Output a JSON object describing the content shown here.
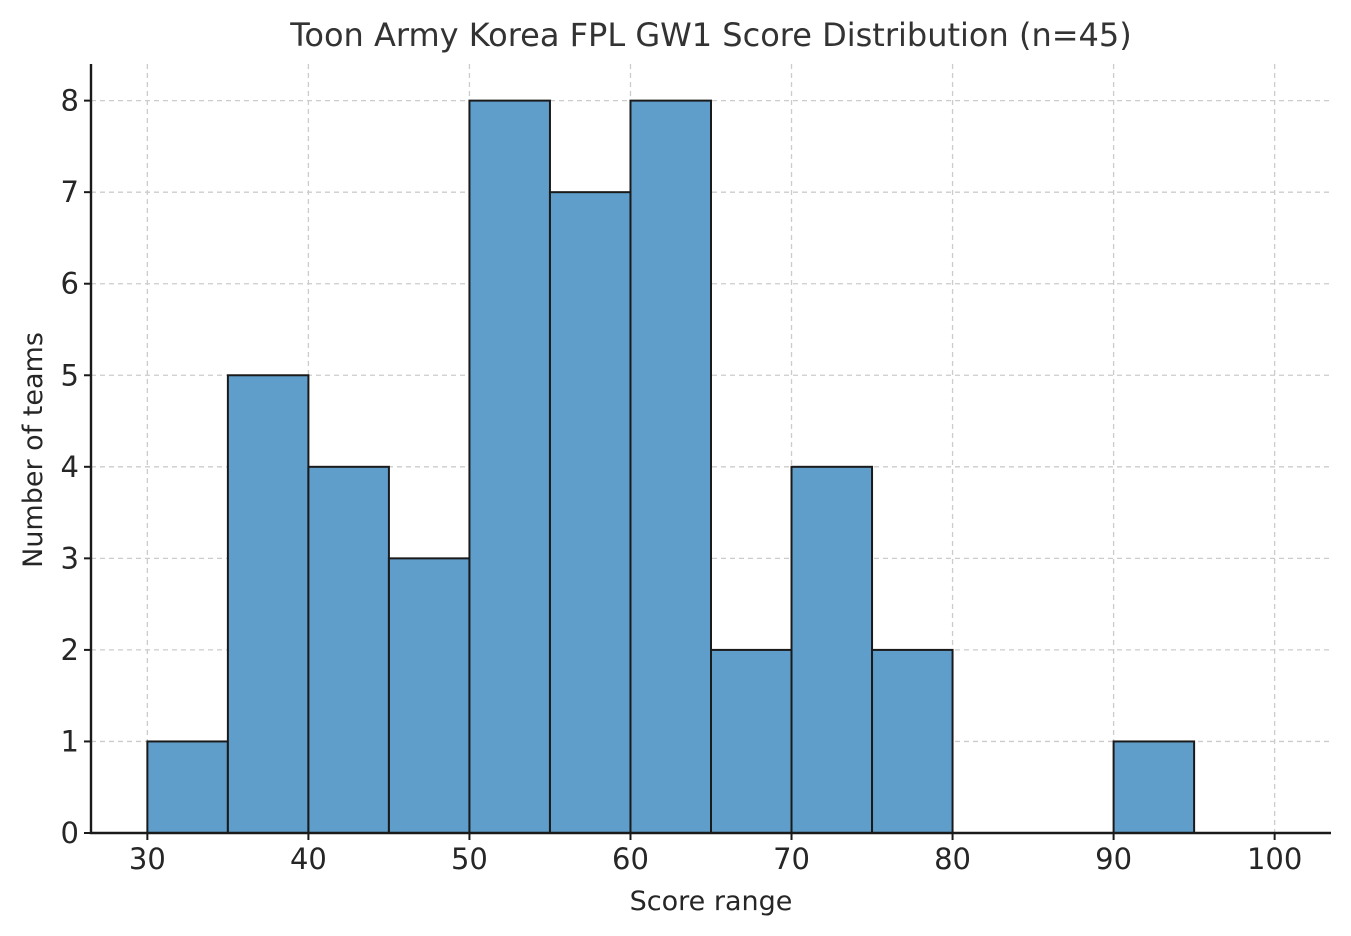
{
  "chart_data": {
    "type": "bar",
    "title": "Toon Army Korea FPL GW1 Score Distribution (n=45)",
    "xlabel": "Score range",
    "ylabel": "Number of teams",
    "bins": [
      {
        "start": 30,
        "end": 35,
        "count": 1
      },
      {
        "start": 35,
        "end": 40,
        "count": 5
      },
      {
        "start": 40,
        "end": 45,
        "count": 4
      },
      {
        "start": 45,
        "end": 50,
        "count": 3
      },
      {
        "start": 50,
        "end": 55,
        "count": 8
      },
      {
        "start": 55,
        "end": 60,
        "count": 7
      },
      {
        "start": 60,
        "end": 65,
        "count": 8
      },
      {
        "start": 65,
        "end": 70,
        "count": 2
      },
      {
        "start": 70,
        "end": 75,
        "count": 4
      },
      {
        "start": 75,
        "end": 80,
        "count": 2
      },
      {
        "start": 80,
        "end": 85,
        "count": 0
      },
      {
        "start": 85,
        "end": 90,
        "count": 0
      },
      {
        "start": 90,
        "end": 95,
        "count": 1
      },
      {
        "start": 95,
        "end": 100,
        "count": 0
      }
    ],
    "xlim": [
      26.5,
      103.5
    ],
    "ylim": [
      0,
      8.4
    ],
    "x_ticks": [
      30,
      40,
      50,
      60,
      70,
      80,
      90,
      100
    ],
    "y_ticks": [
      0,
      1,
      2,
      3,
      4,
      5,
      6,
      7,
      8
    ],
    "grid": true,
    "colors": {
      "bar_fill": "#5f9ecb",
      "bar_edge": "#1a1a1a",
      "grid": "#cccccc",
      "axis": "#1a1a1a"
    }
  }
}
